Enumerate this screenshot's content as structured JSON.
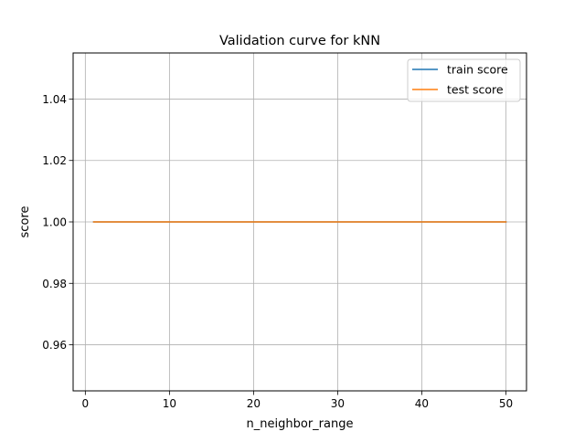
{
  "chart_data": {
    "type": "line",
    "title": "Validation curve for kNN",
    "xlabel": "n_neighbor_range",
    "ylabel": "score",
    "xlim": [
      -1.45,
      52.45
    ],
    "ylim": [
      0.945,
      1.055
    ],
    "xticks": [
      0,
      10,
      20,
      30,
      40,
      50
    ],
    "xtick_labels": [
      "0",
      "10",
      "20",
      "30",
      "40",
      "50"
    ],
    "yticks": [
      0.96,
      0.98,
      1.0,
      1.02,
      1.04
    ],
    "ytick_labels": [
      "0.96",
      "0.98",
      "1.00",
      "1.02",
      "1.04"
    ],
    "grid": true,
    "legend_position": "top-right",
    "x": [
      1,
      50
    ],
    "series": [
      {
        "name": "train score",
        "color": "#1f77b4",
        "values": [
          1.0,
          1.0
        ]
      },
      {
        "name": "test score",
        "color": "#ff7f0e",
        "values": [
          1.0,
          1.0
        ]
      }
    ]
  }
}
